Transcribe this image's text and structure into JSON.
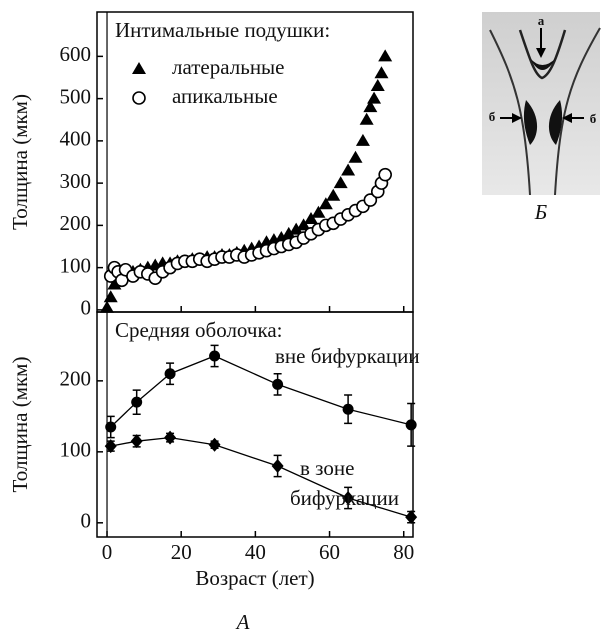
{
  "chart_data": [
    {
      "type": "scatter",
      "title": "Интимальные подушки:",
      "ylabel": "Толщина (мкм)",
      "xlim": [
        -2.7,
        82.5
      ],
      "ylim": [
        -5,
        705
      ],
      "xticks": [
        0,
        20,
        40,
        60,
        80
      ],
      "yticks": [
        0,
        100,
        200,
        300,
        400,
        500,
        600
      ],
      "series": [
        {
          "name": "латеральные",
          "marker": "triangle",
          "color": "#000000",
          "x": [
            0,
            1,
            2,
            3,
            4,
            5,
            7,
            9,
            11,
            13,
            15,
            17,
            19,
            21,
            23,
            25,
            27,
            29,
            31,
            33,
            35,
            37,
            39,
            41,
            43,
            45,
            47,
            49,
            51,
            53,
            55,
            57,
            59,
            61,
            63,
            65,
            67,
            69,
            70,
            71,
            72,
            73,
            74,
            75
          ],
          "values": [
            5,
            30,
            60,
            75,
            80,
            85,
            90,
            95,
            100,
            105,
            110,
            110,
            115,
            115,
            120,
            120,
            125,
            125,
            130,
            130,
            135,
            140,
            145,
            150,
            160,
            165,
            170,
            180,
            190,
            200,
            215,
            230,
            250,
            270,
            300,
            330,
            360,
            400,
            450,
            480,
            500,
            530,
            560,
            600
          ]
        },
        {
          "name": "апикальные",
          "marker": "open-circle",
          "color": "#000000",
          "x": [
            1,
            2,
            3,
            4,
            5,
            7,
            9,
            11,
            13,
            15,
            17,
            19,
            21,
            23,
            25,
            27,
            29,
            31,
            33,
            35,
            37,
            39,
            41,
            43,
            45,
            47,
            49,
            51,
            53,
            55,
            57,
            59,
            61,
            63,
            65,
            67,
            69,
            71,
            73,
            74,
            75
          ],
          "values": [
            80,
            100,
            90,
            70,
            95,
            80,
            90,
            85,
            75,
            90,
            100,
            110,
            115,
            115,
            120,
            115,
            120,
            125,
            125,
            130,
            125,
            130,
            135,
            140,
            145,
            150,
            155,
            160,
            170,
            180,
            190,
            200,
            205,
            215,
            225,
            235,
            245,
            260,
            280,
            300,
            320
          ]
        }
      ]
    },
    {
      "type": "errorbar-line",
      "title": "Средняя оболочка:",
      "ylabel": "Толщина (мкм)",
      "xlabel": "Возраст (лет)",
      "xlim": [
        -2.7,
        82.5
      ],
      "ylim": [
        -20,
        297
      ],
      "xticks": [
        0,
        20,
        40,
        60,
        80
      ],
      "yticks": [
        0,
        100,
        200
      ],
      "annotations": [
        "вне бифуркации",
        "в зоне",
        "бифуркации"
      ],
      "series": [
        {
          "marker": "circle",
          "color": "#000000",
          "x": [
            1,
            8,
            17,
            29,
            46,
            65,
            82
          ],
          "values": [
            135,
            170,
            210,
            235,
            195,
            160,
            138
          ],
          "errors": [
            15,
            17,
            15,
            15,
            15,
            20,
            30
          ]
        },
        {
          "marker": "diamond",
          "color": "#000000",
          "x": [
            1,
            8,
            17,
            29,
            46,
            65,
            82
          ],
          "values": [
            108,
            115,
            120,
            110,
            80,
            35,
            8
          ],
          "errors": [
            7,
            8,
            6,
            5,
            15,
            15,
            8
          ]
        }
      ]
    }
  ],
  "figure_caption": "A",
  "schematic": {
    "labels": [
      "а",
      "б",
      "б"
    ],
    "caption": "Б"
  }
}
